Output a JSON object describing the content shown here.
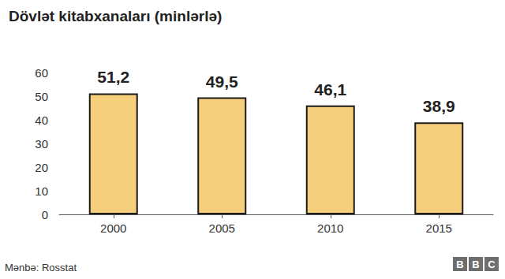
{
  "chart_data": {
    "type": "bar",
    "title": "Dövlət kitabxanaları (minlərlə)",
    "categories": [
      "2000",
      "2005",
      "2010",
      "2015"
    ],
    "values": [
      51.2,
      49.5,
      46.1,
      38.9
    ],
    "value_labels": [
      "51,2",
      "49,5",
      "46,1",
      "38,9"
    ],
    "data_labels": true,
    "color": "#f6cf7c",
    "ylim": [
      0,
      60
    ],
    "yticks": [
      0,
      10,
      20,
      30,
      40,
      50,
      60
    ],
    "grid": false,
    "annotations": [
      "Mənbə: Rosstat",
      "BBC"
    ]
  }
}
